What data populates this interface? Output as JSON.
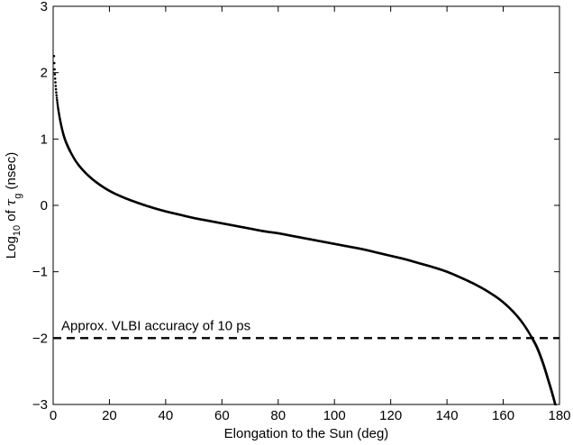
{
  "chart_data": {
    "type": "scatter",
    "xlabel": "Elongation to the Sun (deg)",
    "ylabel": {
      "prefix": "Log",
      "prefix_sub": "10",
      "middle": " of ",
      "symbol": "τ",
      "symbol_sub": "g",
      "suffix": "  (nsec)"
    },
    "xlim": [
      0,
      180
    ],
    "ylim": [
      -3,
      3
    ],
    "xticks": [
      0,
      20,
      40,
      60,
      80,
      100,
      120,
      140,
      160,
      180
    ],
    "yticks": [
      3,
      2,
      1,
      0,
      -1,
      -2,
      -3
    ],
    "ytick_labels": [
      "3",
      "2",
      "1",
      "0",
      "−1",
      "−2",
      "−3"
    ],
    "grid": false,
    "series": [
      {
        "style": "dotted-black",
        "x": [
          0.3,
          0.5,
          1,
          1.5,
          2,
          3,
          4,
          5,
          6,
          8,
          10,
          12,
          15,
          20,
          25,
          30,
          35,
          40,
          45,
          50,
          55,
          60,
          65,
          70,
          75,
          80,
          85,
          90,
          95,
          100,
          105,
          110,
          115,
          120,
          125,
          130,
          135,
          140,
          145,
          150,
          155,
          160,
          165,
          168,
          170,
          172,
          174,
          175,
          176,
          177,
          178,
          178.5,
          179,
          179.3,
          179.5,
          179.7,
          179.8
        ],
        "y": [
          2.25,
          2.05,
          1.75,
          1.55,
          1.4,
          1.18,
          1.02,
          0.91,
          0.82,
          0.67,
          0.56,
          0.47,
          0.36,
          0.22,
          0.12,
          0.04,
          -0.03,
          -0.09,
          -0.14,
          -0.19,
          -0.23,
          -0.27,
          -0.31,
          -0.35,
          -0.39,
          -0.42,
          -0.46,
          -0.5,
          -0.54,
          -0.58,
          -0.62,
          -0.66,
          -0.71,
          -0.76,
          -0.81,
          -0.87,
          -0.93,
          -1.0,
          -1.09,
          -1.19,
          -1.31,
          -1.46,
          -1.67,
          -1.84,
          -1.98,
          -2.14,
          -2.36,
          -2.49,
          -2.63,
          -2.77,
          -2.92,
          -3.0,
          -3.05,
          -3.1,
          -3.15,
          -3.2,
          -3.25
        ]
      }
    ],
    "reference_lines": [
      {
        "y": -2,
        "style": "dashed",
        "label": "Approx. VLBI accuracy of 10 ps"
      }
    ]
  }
}
